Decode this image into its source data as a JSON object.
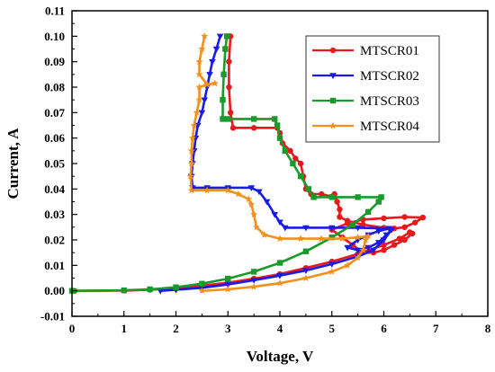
{
  "chart_data": {
    "type": "line",
    "title": "",
    "xlabel": "Voltage, V",
    "ylabel": "Current, A",
    "xlim": [
      0,
      8
    ],
    "ylim": [
      -0.01,
      0.11
    ],
    "xticks": [
      "0",
      "1",
      "2",
      "3",
      "4",
      "5",
      "6",
      "7",
      "8"
    ],
    "yticks": [
      "-0.01",
      "0.00",
      "0.01",
      "0.02",
      "0.03",
      "0.04",
      "0.05",
      "0.06",
      "0.07",
      "0.08",
      "0.09",
      "0.10",
      "0.11"
    ],
    "grid": false,
    "legend_position": "top-right",
    "series": [
      {
        "name": "MTSCR01",
        "color": "#e8191b",
        "marker": "circle",
        "points": [
          [
            0.05,
            0
          ],
          [
            1.0,
            0.0001
          ],
          [
            1.5,
            0.0004
          ],
          [
            2.0,
            0.001
          ],
          [
            2.5,
            0.002
          ],
          [
            3.0,
            0.0032
          ],
          [
            3.5,
            0.0048
          ],
          [
            4.0,
            0.0066
          ],
          [
            4.5,
            0.009
          ],
          [
            5.0,
            0.0115
          ],
          [
            5.5,
            0.0145
          ],
          [
            6.0,
            0.018
          ],
          [
            6.3,
            0.0205
          ],
          [
            6.5,
            0.023
          ],
          [
            6.55,
            0.0225
          ],
          [
            6.4,
            0.02
          ],
          [
            6.2,
            0.018
          ],
          [
            6.0,
            0.016
          ],
          [
            5.8,
            0.015
          ],
          [
            5.6,
            0.015
          ],
          [
            5.4,
            0.018
          ],
          [
            5.2,
            0.021
          ],
          [
            5.0,
            0.024
          ],
          [
            5.3,
            0.0265
          ],
          [
            5.6,
            0.028
          ],
          [
            6.0,
            0.0285
          ],
          [
            6.4,
            0.029
          ],
          [
            6.75,
            0.0288
          ],
          [
            6.6,
            0.0268
          ],
          [
            6.4,
            0.025
          ],
          [
            6.2,
            0.0245
          ],
          [
            6.0,
            0.0248
          ],
          [
            5.6,
            0.026
          ],
          [
            5.3,
            0.0275
          ],
          [
            5.15,
            0.029
          ],
          [
            5.15,
            0.032
          ],
          [
            5.1,
            0.035
          ],
          [
            5.05,
            0.038
          ],
          [
            5.0,
            0.037
          ],
          [
            4.8,
            0.038
          ],
          [
            4.6,
            0.038
          ],
          [
            4.5,
            0.04
          ],
          [
            4.45,
            0.045
          ],
          [
            4.4,
            0.05
          ],
          [
            4.3,
            0.052
          ],
          [
            4.2,
            0.055
          ],
          [
            4.05,
            0.058
          ],
          [
            4.0,
            0.062
          ],
          [
            3.95,
            0.064
          ],
          [
            3.5,
            0.064
          ],
          [
            3.1,
            0.064
          ],
          [
            3.05,
            0.07
          ],
          [
            3.02,
            0.08
          ],
          [
            3.02,
            0.09
          ],
          [
            3.05,
            0.1
          ]
        ]
      },
      {
        "name": "MTSCR02",
        "color": "#1a1ae6",
        "marker": "triangle-down",
        "points": [
          [
            1.7,
            0
          ],
          [
            2.0,
            0.0004
          ],
          [
            2.5,
            0.0012
          ],
          [
            3.0,
            0.0025
          ],
          [
            3.5,
            0.0042
          ],
          [
            4.0,
            0.006
          ],
          [
            4.5,
            0.008
          ],
          [
            5.0,
            0.0105
          ],
          [
            5.5,
            0.0135
          ],
          [
            5.8,
            0.016
          ],
          [
            6.0,
            0.02
          ],
          [
            6.15,
            0.024
          ],
          [
            6.05,
            0.022
          ],
          [
            5.9,
            0.019
          ],
          [
            5.7,
            0.017
          ],
          [
            5.5,
            0.016
          ],
          [
            5.3,
            0.017
          ],
          [
            5.5,
            0.02
          ],
          [
            5.7,
            0.022
          ],
          [
            5.9,
            0.0235
          ],
          [
            6.1,
            0.0245
          ],
          [
            5.5,
            0.0248
          ],
          [
            5.0,
            0.0248
          ],
          [
            4.5,
            0.0248
          ],
          [
            4.1,
            0.0248
          ],
          [
            4.0,
            0.027
          ],
          [
            3.9,
            0.03
          ],
          [
            3.75,
            0.035
          ],
          [
            3.6,
            0.039
          ],
          [
            3.45,
            0.0405
          ],
          [
            3.0,
            0.0405
          ],
          [
            2.6,
            0.0405
          ],
          [
            2.32,
            0.0405
          ],
          [
            2.3,
            0.045
          ],
          [
            2.32,
            0.05
          ],
          [
            2.35,
            0.055
          ],
          [
            2.38,
            0.06
          ],
          [
            2.42,
            0.065
          ],
          [
            2.5,
            0.07
          ],
          [
            2.55,
            0.075
          ],
          [
            2.6,
            0.08
          ],
          [
            2.65,
            0.085
          ],
          [
            2.7,
            0.09
          ],
          [
            2.78,
            0.095
          ],
          [
            2.85,
            0.1
          ]
        ]
      },
      {
        "name": "MTSCR03",
        "color": "#1a9a2a",
        "marker": "square",
        "points": [
          [
            0,
            0
          ],
          [
            1.0,
            0.0002
          ],
          [
            1.5,
            0.0006
          ],
          [
            2.0,
            0.0014
          ],
          [
            2.5,
            0.0028
          ],
          [
            3.0,
            0.0048
          ],
          [
            3.5,
            0.0075
          ],
          [
            4.0,
            0.011
          ],
          [
            4.5,
            0.0155
          ],
          [
            5.0,
            0.021
          ],
          [
            5.4,
            0.026
          ],
          [
            5.7,
            0.031
          ],
          [
            5.9,
            0.035
          ],
          [
            5.95,
            0.0368
          ],
          [
            5.5,
            0.0368
          ],
          [
            5.0,
            0.0368
          ],
          [
            4.65,
            0.0368
          ],
          [
            4.55,
            0.04
          ],
          [
            4.4,
            0.045
          ],
          [
            4.25,
            0.05
          ],
          [
            4.1,
            0.055
          ],
          [
            4.0,
            0.06
          ],
          [
            3.95,
            0.065
          ],
          [
            3.9,
            0.0675
          ],
          [
            3.5,
            0.0675
          ],
          [
            3.0,
            0.0675
          ],
          [
            2.9,
            0.0675
          ],
          [
            2.9,
            0.075
          ],
          [
            2.92,
            0.085
          ],
          [
            2.95,
            0.095
          ],
          [
            2.98,
            0.1
          ]
        ]
      },
      {
        "name": "MTSCR04",
        "color": "#f2901c",
        "marker": "star",
        "points": [
          [
            2.5,
            0
          ],
          [
            3.0,
            0.0006
          ],
          [
            3.5,
            0.0016
          ],
          [
            4.0,
            0.003
          ],
          [
            4.5,
            0.005
          ],
          [
            5.0,
            0.0075
          ],
          [
            5.3,
            0.01
          ],
          [
            5.5,
            0.013
          ],
          [
            5.6,
            0.016
          ],
          [
            5.65,
            0.02
          ],
          [
            5.7,
            0.0215
          ],
          [
            5.5,
            0.021
          ],
          [
            5.2,
            0.0205
          ],
          [
            4.8,
            0.0205
          ],
          [
            4.4,
            0.0205
          ],
          [
            4.0,
            0.0205
          ],
          [
            3.7,
            0.022
          ],
          [
            3.55,
            0.025
          ],
          [
            3.5,
            0.03
          ],
          [
            3.45,
            0.034
          ],
          [
            3.4,
            0.036
          ],
          [
            3.2,
            0.038
          ],
          [
            3.0,
            0.0395
          ],
          [
            2.6,
            0.0395
          ],
          [
            2.3,
            0.0395
          ],
          [
            2.28,
            0.045
          ],
          [
            2.3,
            0.05
          ],
          [
            2.3,
            0.055
          ],
          [
            2.32,
            0.06
          ],
          [
            2.35,
            0.065
          ],
          [
            2.4,
            0.07
          ],
          [
            2.45,
            0.075
          ],
          [
            2.45,
            0.08
          ],
          [
            2.6,
            0.081
          ],
          [
            2.75,
            0.0815
          ],
          [
            2.6,
            0.081
          ],
          [
            2.45,
            0.085
          ],
          [
            2.45,
            0.09
          ],
          [
            2.5,
            0.095
          ],
          [
            2.55,
            0.1
          ]
        ]
      }
    ]
  }
}
